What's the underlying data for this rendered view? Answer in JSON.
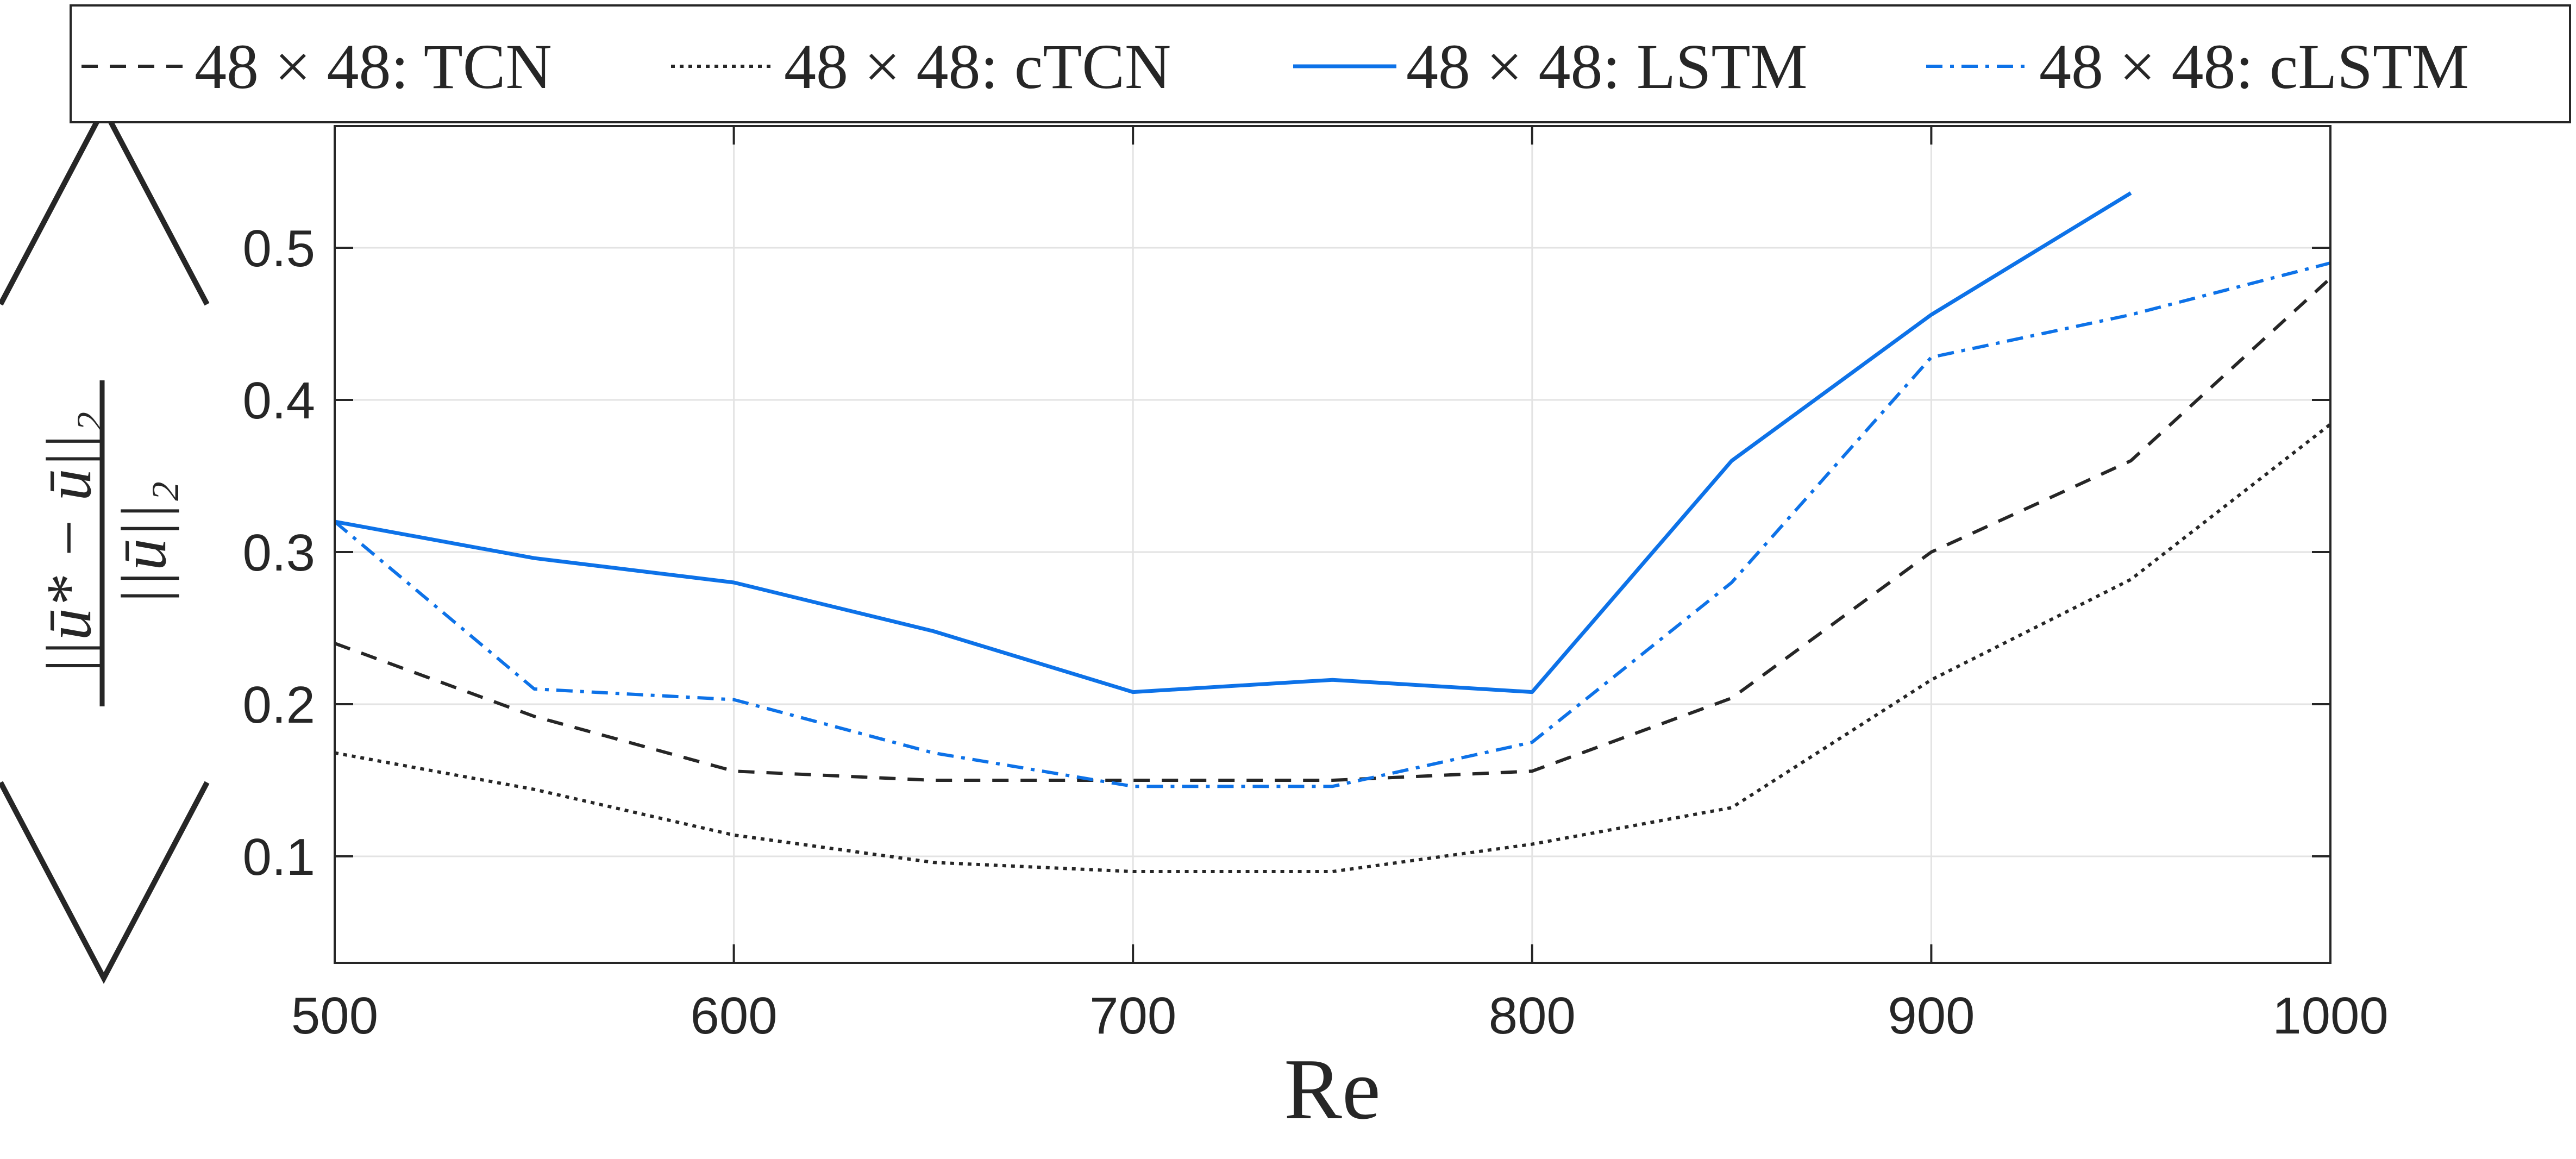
{
  "chart_data": {
    "type": "line",
    "xlabel": "Re",
    "ylabel_parts": {
      "numerator": "||ū* − ū||₂",
      "denominator": "||ū||₂"
    },
    "xlim": [
      500,
      1000
    ],
    "ylim": [
      0.03,
      0.58
    ],
    "x_ticks": [
      "500",
      "600",
      "700",
      "800",
      "900",
      "1000"
    ],
    "y_ticks": [
      "0.1",
      "0.2",
      "0.3",
      "0.4",
      "0.5"
    ],
    "x_tick_values": [
      500,
      600,
      700,
      800,
      900,
      1000
    ],
    "y_tick_values": [
      0.1,
      0.2,
      0.3,
      0.4,
      0.5
    ],
    "grid": true,
    "legend_position": "top",
    "series": [
      {
        "name": "48 × 48:  TCN",
        "color": "#262626",
        "style": "dashed",
        "x": [
          500,
          550,
          600,
          650,
          700,
          750,
          800,
          850,
          900,
          950,
          1000
        ],
        "y": [
          0.24,
          0.192,
          0.156,
          0.15,
          0.15,
          0.15,
          0.156,
          0.204,
          0.3,
          0.36,
          0.48
        ]
      },
      {
        "name": "48 × 48:  cTCN",
        "color": "#262626",
        "style": "dotted",
        "x": [
          500,
          550,
          600,
          650,
          700,
          750,
          800,
          850,
          900,
          950,
          1000
        ],
        "y": [
          0.168,
          0.144,
          0.114,
          0.096,
          0.09,
          0.09,
          0.108,
          0.132,
          0.216,
          0.282,
          0.384
        ]
      },
      {
        "name": "48 × 48:  LSTM",
        "color": "#0d72e8",
        "style": "solid",
        "x": [
          500,
          550,
          600,
          650,
          700,
          750,
          800,
          850,
          900,
          950
        ],
        "y": [
          0.32,
          0.296,
          0.28,
          0.248,
          0.208,
          0.216,
          0.208,
          0.36,
          0.456,
          0.536
        ]
      },
      {
        "name": "48 × 48:  cLSTM",
        "color": "#0d72e8",
        "style": "dashdot",
        "x": [
          500,
          550,
          600,
          650,
          700,
          750,
          800,
          850,
          900,
          950,
          1000
        ],
        "y": [
          0.32,
          0.21,
          0.203,
          0.168,
          0.146,
          0.146,
          0.175,
          0.28,
          0.428,
          0.456,
          0.49
        ]
      }
    ]
  }
}
